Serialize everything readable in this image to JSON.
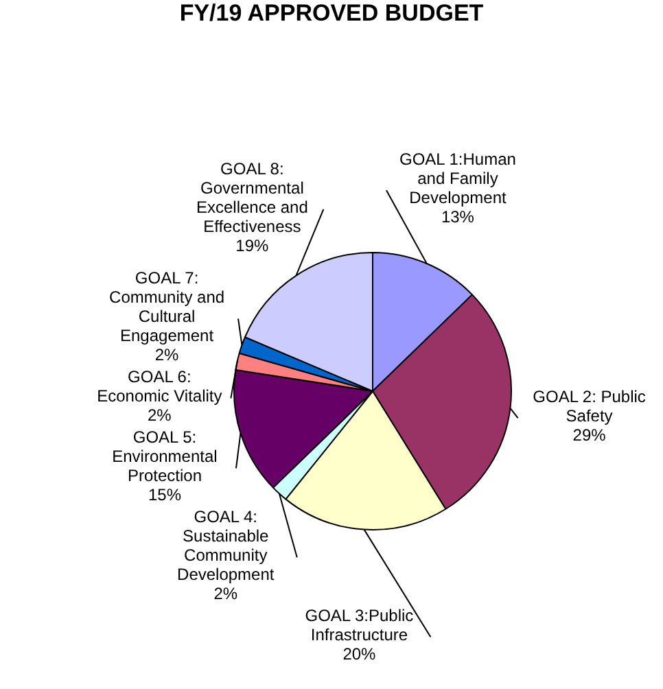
{
  "chart_data": {
    "type": "pie",
    "title": "FY/19 APPROVED BUDGET",
    "categories": [
      "GOAL 1:Human and Family Development",
      "GOAL 2: Public Safety",
      "GOAL 3:Public Infrastructure",
      "GOAL 4: Sustainable Community Development",
      "GOAL 5: Environmental Protection",
      "GOAL 6: Economic Vitality",
      "GOAL 7: Community and Cultural Engagement",
      "GOAL 8: Governmental Excellence and Effectiveness"
    ],
    "values": [
      13,
      29,
      20,
      2,
      15,
      2,
      2,
      19
    ],
    "value_labels": [
      "13%",
      "29%",
      "20%",
      "2%",
      "15%",
      "2%",
      "2%",
      "19%"
    ],
    "colors": [
      "#9999ff",
      "#993366",
      "#ffffcc",
      "#ccffff",
      "#660066",
      "#ff8080",
      "#0066cc",
      "#ccccff"
    ],
    "legend": false
  }
}
